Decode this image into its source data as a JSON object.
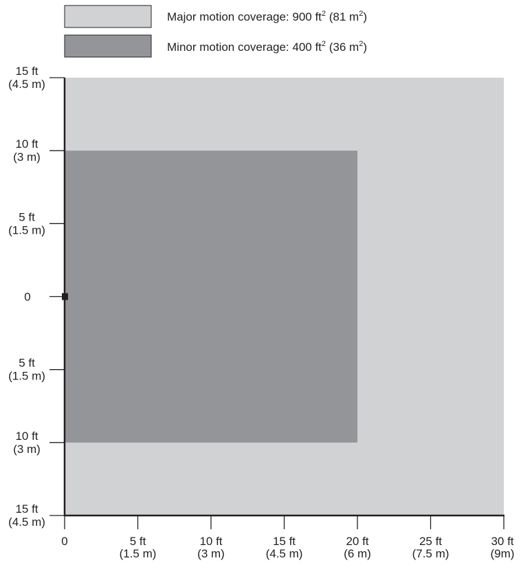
{
  "legend": [
    {
      "label_prefix": "Major motion coverage: 900 ft",
      "sup1": "2",
      "label_mid": " (81 m",
      "sup2": "2",
      "label_suffix": ")",
      "color": "#d1d2d4"
    },
    {
      "label_prefix": "Minor motion coverage: 400 ft",
      "sup1": "2",
      "label_mid": " (36 m",
      "sup2": "2",
      "label_suffix": ")",
      "color": "#939598"
    }
  ],
  "y_ticks": [
    {
      "ft": "15 ft",
      "m": "(4.5 m)"
    },
    {
      "ft": "10 ft",
      "m": "(3 m)"
    },
    {
      "ft": "5 ft",
      "m": "(1.5 m)"
    },
    {
      "ft": "0",
      "m": ""
    },
    {
      "ft": "5 ft",
      "m": "(1.5 m)"
    },
    {
      "ft": "10 ft",
      "m": "(3 m)"
    },
    {
      "ft": "15 ft",
      "m": "(4.5 m)"
    }
  ],
  "x_ticks": [
    {
      "ft": "0",
      "m": ""
    },
    {
      "ft": "5 ft",
      "m": "(1.5 m)"
    },
    {
      "ft": "10 ft",
      "m": "(3 m)"
    },
    {
      "ft": "15 ft",
      "m": "(4.5 m)"
    },
    {
      "ft": "20 ft",
      "m": "(6 m)"
    },
    {
      "ft": "25 ft",
      "m": "(7.5 m)"
    },
    {
      "ft": "30 ft",
      "m": "(9m)"
    }
  ],
  "coverage": {
    "major": {
      "x_range_ft": [
        0,
        30
      ],
      "y_range_ft": [
        -15,
        15
      ],
      "color": "#d1d2d4"
    },
    "minor": {
      "x_range_ft": [
        0,
        20
      ],
      "y_range_ft": [
        -10,
        10
      ],
      "color": "#939598"
    }
  },
  "axis_color": "#231f20"
}
